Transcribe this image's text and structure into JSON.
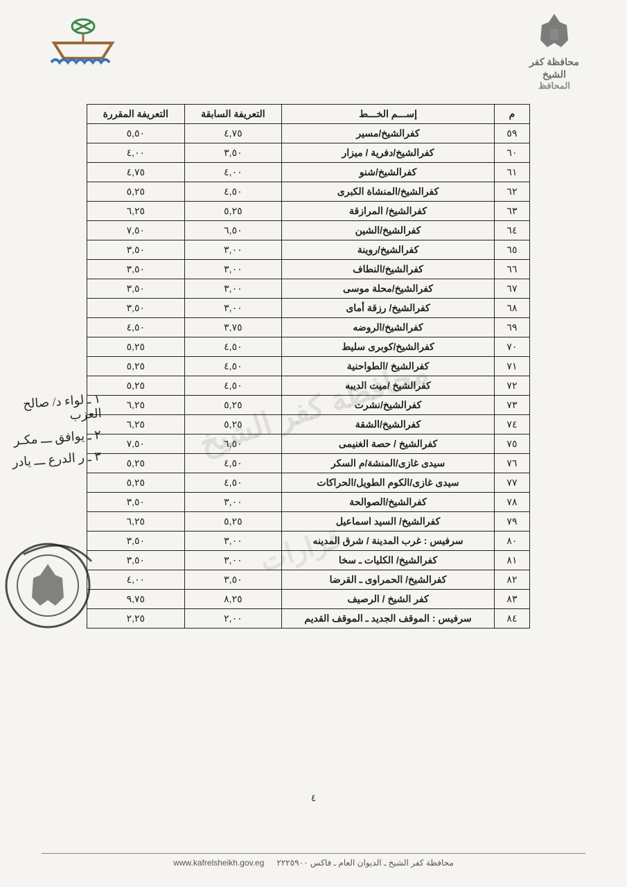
{
  "header": {
    "org_line1": "محافظة كفر الشيخ",
    "org_line2": "المحافظ"
  },
  "watermark_main": "محافظة كفر الشيخ",
  "watermark_sub": "قرارات",
  "table": {
    "columns": [
      "م",
      "إســـم الخـــط",
      "التعريفة السابقة",
      "التعريفة المقررة"
    ],
    "col_widths_pct": [
      8,
      48,
      22,
      22
    ],
    "rows": [
      [
        "٥٩",
        "كفرالشيخ/مسير",
        "٤,٧٥",
        "٥,٥٠"
      ],
      [
        "٦٠",
        "كفرالشيخ/دفرية / ميزار",
        "٣,٥٠",
        "٤,٠٠"
      ],
      [
        "٦١",
        "كفرالشيخ/شنو",
        "٤,٠٠",
        "٤,٧٥"
      ],
      [
        "٦٢",
        "كفرالشيخ/المنشاة الكبرى",
        "٤,٥٠",
        "٥,٢٥"
      ],
      [
        "٦٣",
        "كفرالشيخ/ المرازقة",
        "٥,٢٥",
        "٦,٢٥"
      ],
      [
        "٦٤",
        "كفرالشيخ/الشين",
        "٦,٥٠",
        "٧,٥٠"
      ],
      [
        "٦٥",
        "كفرالشيخ/روينة",
        "٣,٠٠",
        "٣,٥٠"
      ],
      [
        "٦٦",
        "كفرالشيخ/النطاف",
        "٣,٠٠",
        "٣,٥٠"
      ],
      [
        "٦٧",
        "كفرالشيخ/محلة موسى",
        "٣,٠٠",
        "٣,٥٠"
      ],
      [
        "٦٨",
        "كفرالشيخ/ رزقة أماى",
        "٣,٠٠",
        "٣,٥٠"
      ],
      [
        "٦٩",
        "كفرالشيخ/الروضه",
        "٣,٧٥",
        "٤,٥٠"
      ],
      [
        "٧٠",
        "كفرالشيخ/كوبرى سليط",
        "٤,٥٠",
        "٥,٢٥"
      ],
      [
        "٧١",
        "كفرالشيخ /الطواحنية",
        "٤,٥٠",
        "٥,٢٥"
      ],
      [
        "٧٢",
        "كفرالشيخ /ميت الديبه",
        "٤,٥٠",
        "٥,٢٥"
      ],
      [
        "٧٣",
        "كفرالشيخ/نشرت",
        "٥,٢٥",
        "٦,٢٥"
      ],
      [
        "٧٤",
        "كفرالشيخ/الشقة",
        "٥,٢٥",
        "٦,٢٥"
      ],
      [
        "٧٥",
        "كفرالشيخ / حصة الغنيمى",
        "٦,٥٠",
        "٧,٥٠"
      ],
      [
        "٧٦",
        "سيدى غازى/المنشة/م السكر",
        "٤,٥٠",
        "٥,٢٥"
      ],
      [
        "٧٧",
        "سيدى غازى/الكوم الطويل/الحراكات",
        "٤,٥٠",
        "٥,٢٥"
      ],
      [
        "٧٨",
        "كفرالشيخ/الصوالحة",
        "٣,٠٠",
        "٣,٥٠"
      ],
      [
        "٧٩",
        "كفرالشيخ/ السيد اسماعيل",
        "٥,٢٥",
        "٦,٢٥"
      ],
      [
        "٨٠",
        "سرفيس : غرب المدينة / شرق المدينه",
        "٣,٠٠",
        "٣,٥٠"
      ],
      [
        "٨١",
        "كفرالشيخ/ الكليات ـ سخا",
        "٣,٠٠",
        "٣,٥٠"
      ],
      [
        "٨٢",
        "كفرالشيخ/ الحمراوى ـ القرضا",
        "٣,٥٠",
        "٤,٠٠"
      ],
      [
        "٨٣",
        "كفر الشيخ / الرصيف",
        "٨,٢٥",
        "٩,٧٥"
      ],
      [
        "٨٤",
        "سرفيس : الموقف الجديد ـ الموقف القديم",
        "٢,٠٠",
        "٢,٢٥"
      ]
    ]
  },
  "marginalia": {
    "line1": "١ ـ لواء د/ صالح العزب",
    "line2": "٢ ـ يوافق ـــ مكـر",
    "line3": "٣ ـ ر الدرع ـــ يادر"
  },
  "page_number": "٤",
  "footer": {
    "text": "محافظة كفر الشيخ ـ الديوان العام ـ فاكس ٢٢٢٥٩٠٠",
    "website": "www.kafrelsheikh.gov.eg"
  },
  "colors": {
    "page_bg": "#f6f4f0",
    "text": "#222222",
    "border": "#222222",
    "header_gray": "#6b6b6b",
    "boat_brown": "#9c6a3b",
    "boat_blue": "#3a74b5",
    "boat_green": "#3a8a4a",
    "watermark": "rgba(120,120,120,0.18)"
  }
}
